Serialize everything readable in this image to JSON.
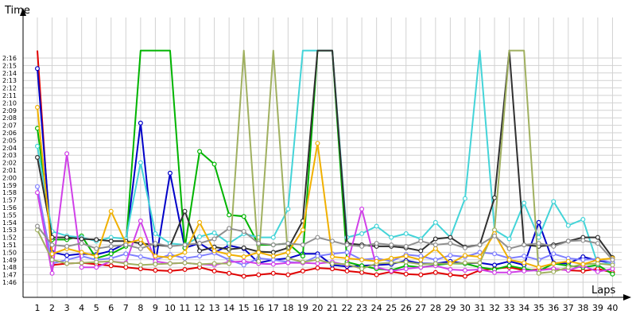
{
  "chart_data": {
    "type": "line",
    "ylabel": "Time",
    "xlabel": "Laps",
    "x": [
      1,
      2,
      3,
      4,
      5,
      6,
      7,
      8,
      9,
      10,
      11,
      12,
      13,
      14,
      15,
      16,
      17,
      18,
      19,
      20,
      21,
      22,
      23,
      24,
      25,
      26,
      27,
      28,
      29,
      30,
      31,
      32,
      33,
      34,
      35,
      36,
      37,
      38,
      39,
      40
    ],
    "y_ticks": [
      "1:46",
      "1:47",
      "1:48",
      "1:49",
      "1:50",
      "1:51",
      "1:52",
      "1:53",
      "1:54",
      "1:55",
      "1:56",
      "1:57",
      "1:58",
      "1:59",
      "2:00",
      "2:01",
      "2:02",
      "2:03",
      "2:04",
      "2:05",
      "2:06",
      "2:07",
      "2:08",
      "2:09",
      "2:10",
      "2:11",
      "2:12",
      "2:13",
      "2:14",
      "2:15",
      "2:16"
    ],
    "ylim_seconds": [
      106,
      136.8
    ],
    "grid": true,
    "series": [
      {
        "color": "#e00000",
        "values": [
          137,
          108.3,
          108.5,
          108.6,
          108.4,
          108.2,
          108.0,
          107.8,
          107.6,
          107.5,
          107.7,
          108.0,
          107.5,
          107.2,
          106.8,
          107.0,
          107.2,
          107.0,
          107.5,
          107.9,
          107.8,
          107.5,
          107.3,
          107.0,
          107.4,
          107.1,
          107.0,
          107.3,
          107.0,
          106.8,
          107.6,
          107.8,
          108.0,
          107.6,
          107.7,
          107.8,
          107.6,
          107.5,
          107.8,
          107.3
        ]
      },
      {
        "color": "#0000c8",
        "values": [
          134.6,
          110.0,
          109.6,
          109.8,
          109.7,
          110.2,
          111.2,
          127.3,
          108.5,
          120.6,
          110.6,
          111.2,
          110.0,
          110.9,
          110.5,
          108.6,
          109.0,
          109.2,
          109.8,
          109.8,
          108.3,
          108.1,
          108.2,
          108.3,
          108.4,
          108.9,
          108.5,
          108.5,
          108.8,
          108.5,
          108.6,
          108.3,
          108.8,
          108.3,
          114.0,
          108.6,
          108.5,
          109.4,
          108.9,
          108.6
        ]
      },
      {
        "color": "#00b400",
        "values": [
          126.6,
          111.7,
          111.7,
          112.2,
          109.2,
          109.8,
          110.8,
          137,
          137,
          137,
          110.6,
          123.5,
          121.8,
          115.0,
          114.8,
          111.0,
          111.0,
          111.2,
          109.5,
          137,
          137,
          108.7,
          108.2,
          107.8,
          107.6,
          108.2,
          108.0,
          108.3,
          108.5,
          108.5,
          108.0,
          107.7,
          108.2,
          107.8,
          107.5,
          108.5,
          108.2,
          108.0,
          108.3,
          107.1
        ]
      },
      {
        "color": "#44d4d8",
        "values": [
          124.2,
          112.8,
          112.2,
          112.0,
          111.5,
          112.0,
          111.8,
          122.0,
          112.5,
          111.2,
          111.0,
          112.1,
          112.6,
          111.2,
          112.5,
          112.0,
          112.0,
          115.8,
          137,
          137,
          137,
          112.0,
          112.5,
          113.5,
          112.0,
          112.5,
          111.8,
          114.0,
          112.0,
          117.2,
          137,
          113.0,
          111.8,
          116.6,
          112.0,
          116.8,
          113.6,
          114.4,
          108.4,
          108.6
        ]
      },
      {
        "color": "#303030",
        "values": [
          122.7,
          112.0,
          112.0,
          111.8,
          111.7,
          111.5,
          111.5,
          111.2,
          111.0,
          110.8,
          115.5,
          110.2,
          110.7,
          110.4,
          110.6,
          110.1,
          110.0,
          110.6,
          114.2,
          137,
          137,
          111.2,
          111.0,
          110.8,
          110.8,
          110.6,
          110.2,
          111.8,
          112.0,
          110.7,
          111.0,
          117.3,
          137,
          111.0,
          110.8,
          111.0,
          111.5,
          112.0,
          112.0,
          109.3
        ]
      },
      {
        "color": "#8080ff",
        "values": [
          118.8,
          108.5,
          109.0,
          109.5,
          109.0,
          109.2,
          109.8,
          109.4,
          109.0,
          109.7,
          109.2,
          109.5,
          109.9,
          109.0,
          108.3,
          109.2,
          109.0,
          108.7,
          108.6,
          109.5,
          109.8,
          110.0,
          109.0,
          109.2,
          108.8,
          109.7,
          109.5,
          109.0,
          109.6,
          109.4,
          110.0,
          109.8,
          109.2,
          109.5,
          109.0,
          109.8,
          109.2,
          109.0,
          109.1,
          108.6
        ]
      },
      {
        "color": "#d040e8",
        "values": [
          118.0,
          107.2,
          123.2,
          108.0,
          108.0,
          108.8,
          108.6,
          114.2,
          108.8,
          108.5,
          108.6,
          108.4,
          108.3,
          108.7,
          108.8,
          108.5,
          108.4,
          108.6,
          108.6,
          108.5,
          108.7,
          108.3,
          115.8,
          108.0,
          107.5,
          107.8,
          108.0,
          108.2,
          107.7,
          107.6,
          107.7,
          107.3,
          107.3,
          107.5,
          107.6,
          107.8,
          107.6,
          108.2,
          107.4,
          107.8
        ]
      },
      {
        "color": "#a0b060",
        "values": [
          113.0,
          109.0,
          108.5,
          108.6,
          108.7,
          108.8,
          108.5,
          108.3,
          108.4,
          108.5,
          108.6,
          108.4,
          108.5,
          108.5,
          137,
          108.8,
          137,
          109.2,
          108.7,
          109.0,
          108.5,
          108.4,
          107.8,
          108.5,
          108.6,
          108.7,
          108.4,
          108.5,
          108.5,
          108.6,
          108.6,
          113.0,
          137,
          137,
          107.2,
          107.4,
          108.0,
          108.4,
          108.5,
          108.3
        ]
      },
      {
        "color": "#f0b000",
        "values": [
          129.4,
          109.8,
          110.5,
          110.0,
          109.5,
          115.5,
          111.2,
          111.7,
          109.5,
          109.3,
          110.0,
          114.0,
          110.2,
          109.7,
          109.4,
          110.0,
          109.5,
          110.0,
          113.0,
          124.6,
          109.4,
          109.2,
          109.0,
          108.8,
          109.2,
          109.5,
          109.0,
          110.5,
          108.5,
          109.6,
          109.4,
          112.5,
          109.0,
          108.6,
          108.0,
          108.5,
          108.8,
          108.4,
          109.0,
          109.2
        ]
      },
      {
        "color": "#909090",
        "values": [
          113.5,
          111.0,
          110.8,
          111.2,
          110.5,
          110.8,
          111.0,
          110.5,
          111.2,
          110.8,
          111.0,
          111.2,
          111.8,
          113.2,
          112.8,
          111.2,
          111.0,
          111.2,
          111.0,
          112.0,
          111.5,
          111.0,
          110.8,
          111.2,
          111.0,
          110.8,
          111.5,
          111.0,
          111.2,
          110.6,
          111.0,
          112.2,
          110.5,
          111.0,
          111.2,
          110.8,
          111.5,
          111.6,
          111.2,
          109.0
        ]
      }
    ]
  }
}
